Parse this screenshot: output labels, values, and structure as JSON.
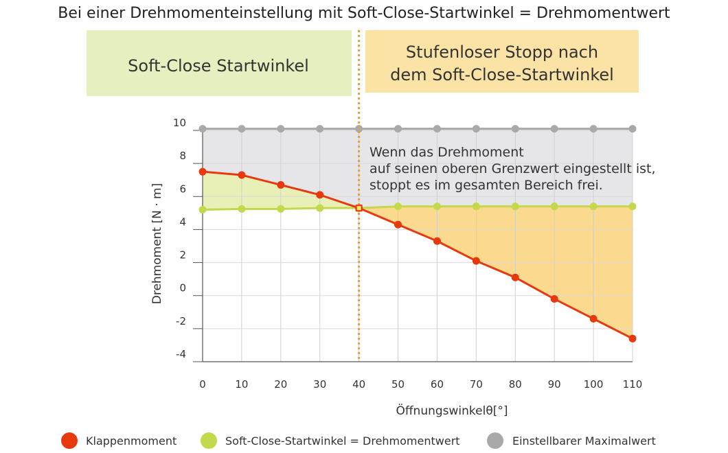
{
  "title": "Bei einer Drehmomenteinstellung mit Soft-Close-Startwinkel = Drehmomentwert",
  "zones": {
    "left_label": "Soft-Close Startwinkel",
    "right_label_line1": "Stufenloser Stopp nach",
    "right_label_line2": "dem Soft-Close-Startwinkel"
  },
  "annotation": [
    "Wenn das Drehmoment",
    "auf seinen oberen Grenzwert eingestellt ist,",
    "stoppt es im gesamten Bereich frei."
  ],
  "colors": {
    "klappen": "#e8380d",
    "softclose": "#c3d84a",
    "max": "#a9a9a9",
    "green_fill": "#e8f0b8",
    "orange_fill": "#fbd98e",
    "gray_fill": "#e6e6e8",
    "left_box": "#e6efbf",
    "right_box": "#fbe2a5",
    "divider": "#f0a020"
  },
  "chart_data": {
    "type": "line",
    "xlabel": "Öffnungswinkelθ[°]",
    "ylabel": "Drehmoment [N · m]",
    "x": [
      0,
      10,
      20,
      30,
      40,
      50,
      60,
      70,
      80,
      90,
      100,
      110
    ],
    "x_tick_labels": [
      "0",
      "10",
      "20",
      "30",
      "40",
      "50",
      "60",
      "70",
      "80",
      "90",
      "100",
      "110"
    ],
    "y_tick_labels": [
      "10",
      "8",
      "6",
      "4",
      "2",
      "0",
      "-2",
      "-4"
    ],
    "y_tick_values": [
      10,
      8,
      6,
      4,
      2,
      0,
      -2,
      -4
    ],
    "xlim": [
      0,
      110
    ],
    "ylim": [
      -4,
      10
    ],
    "divider_x": 40,
    "grid": true,
    "legend_position": "bottom",
    "series": [
      {
        "name": "Klappenmoment",
        "key": "klappen",
        "values": [
          7.5,
          7.3,
          6.7,
          6.1,
          5.3,
          4.3,
          3.3,
          2.1,
          1.1,
          -0.2,
          -1.4,
          -2.6
        ]
      },
      {
        "name": "Soft-Close-Startwinkel = Drehmomentwert",
        "key": "softclose",
        "values": [
          5.2,
          5.25,
          5.25,
          5.3,
          5.3,
          5.4,
          5.4,
          5.4,
          5.4,
          5.4,
          5.4,
          5.4
        ]
      },
      {
        "name": "Einstellbarer Maximalwert",
        "key": "max",
        "values": [
          10.1,
          10.1,
          10.1,
          10.1,
          10.1,
          10.1,
          10.1,
          10.1,
          10.1,
          10.1,
          10.1,
          10.1
        ]
      }
    ]
  }
}
